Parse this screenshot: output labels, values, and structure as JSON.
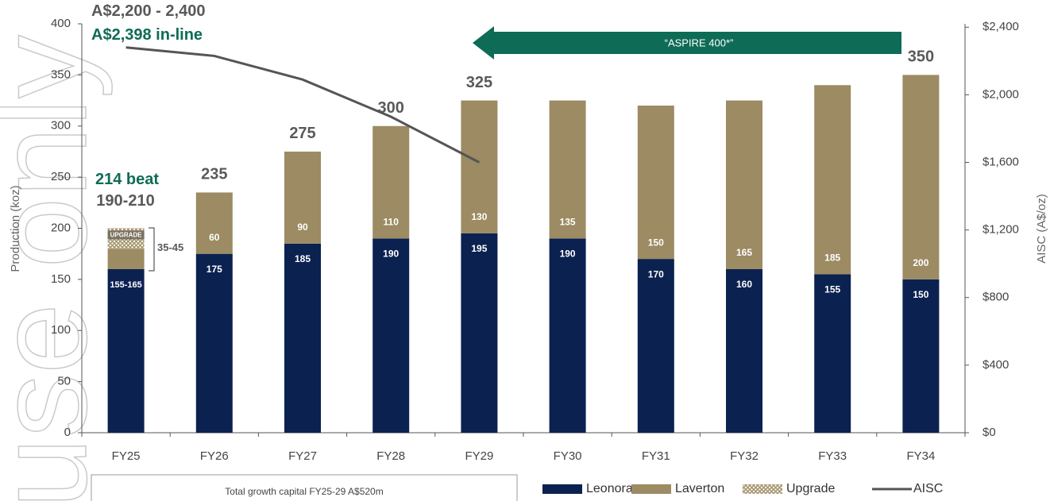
{
  "chart_data": {
    "type": "bar",
    "stacked": true,
    "categories": [
      "FY25",
      "FY26",
      "FY27",
      "FY28",
      "FY29",
      "FY30",
      "FY31",
      "FY32",
      "FY33",
      "FY34"
    ],
    "series": [
      {
        "name": "Leonora",
        "color": "#0b2150",
        "values": [
          160,
          175,
          185,
          190,
          195,
          190,
          170,
          160,
          155,
          150
        ],
        "value_labels": [
          "155-165",
          "175",
          "185",
          "190",
          "195",
          "190",
          "170",
          "160",
          "155",
          "150"
        ]
      },
      {
        "name": "Laverton",
        "color": "#9c8b63",
        "values": [
          20,
          60,
          90,
          110,
          130,
          135,
          150,
          165,
          185,
          200
        ],
        "value_labels": [
          null,
          "60",
          "90",
          "110",
          "130",
          "135",
          "150",
          "165",
          "185",
          "200"
        ]
      },
      {
        "name": "Upgrade",
        "color": "#a99a74",
        "values": [
          20,
          null,
          null,
          null,
          null,
          null,
          null,
          null,
          null,
          null
        ]
      },
      {
        "name": "AISC",
        "type": "line",
        "axis": "y2",
        "color": "#555555",
        "values": [
          2280,
          2230,
          2090,
          1870,
          1600,
          null,
          null,
          null,
          null,
          null
        ]
      }
    ],
    "totals": [
      null,
      235,
      275,
      300,
      325,
      null,
      null,
      null,
      null,
      350
    ],
    "ylabel": "Production (koz)",
    "y2label": "AISC (A$/oz)",
    "ylim": [
      0,
      400
    ],
    "yticks": [
      0,
      50,
      100,
      150,
      200,
      250,
      300,
      350,
      400
    ],
    "y2lim": [
      0,
      2420
    ],
    "y2ticks": [
      {
        "value": 0,
        "label": "$0"
      },
      {
        "value": 400,
        "label": "$400"
      },
      {
        "value": 800,
        "label": "$800"
      },
      {
        "value": 1200,
        "label": "$1,200"
      },
      {
        "value": 1600,
        "label": "$1,600"
      },
      {
        "value": 2000,
        "label": "$2,000"
      },
      {
        "value": 2400,
        "label": "$2,400"
      }
    ],
    "annotations": {
      "aisc_guidance": "A$2,200 - 2,400",
      "aisc_result": "A$2,398 in-line",
      "fy25_result": "214 beat",
      "fy25_guidance": "190-210",
      "upgrade_label": "UPGRADE",
      "upgrade_range": "35-45",
      "aspire": "“ASPIRE 400*”",
      "capital_note": "Total growth capital FY25-29 A$520m",
      "watermark": "use only"
    },
    "annotation_colors": {
      "green": "#0e6b56",
      "gray": "#595959"
    }
  }
}
